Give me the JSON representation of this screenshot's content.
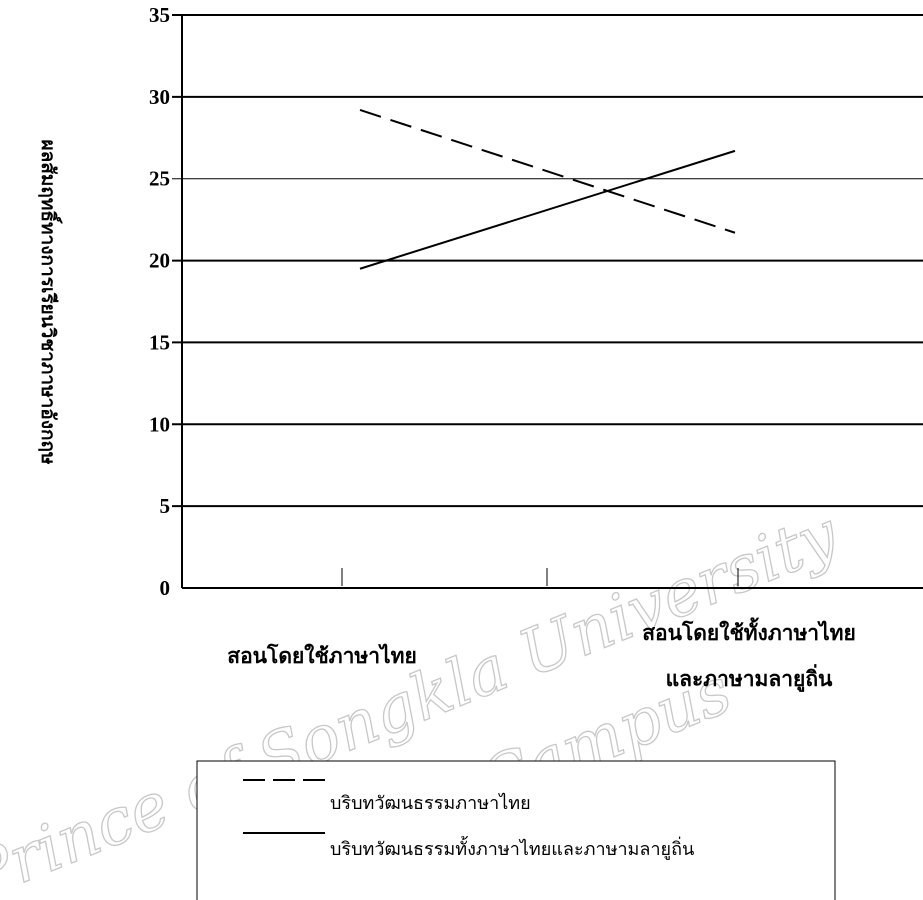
{
  "chart_data": {
    "type": "line",
    "title": "",
    "xlabel": "",
    "ylabel": "ผลสัมฤทธิ์ทางการเรียนวิชาภาษาอังกฤษ",
    "ylim": [
      0,
      35
    ],
    "yticks": [
      "0",
      "5",
      "10",
      "15",
      "20",
      "25",
      "30",
      "35"
    ],
    "categories": [
      [
        "สอนโดยใช้ภาษาไทย"
      ],
      [
        "สอนโดยใช้ทั้งภาษาไทย",
        "และภาษามลายูถิ่น"
      ]
    ],
    "series": [
      {
        "name": "บริบทวัฒนธรรมภาษาไทย",
        "style": "dashed",
        "values": [
          29.2,
          21.7
        ]
      },
      {
        "name": "บริบทวัฒนธรรมทั้งภาษาไทยและภาษามลายูถิ่น",
        "style": "solid",
        "values": [
          19.5,
          26.7
        ]
      }
    ],
    "grid": true,
    "legend_position": "bottom"
  },
  "watermark": {
    "text_line1": "Prince of Songkla University",
    "text_line2": "Pattani Campus"
  }
}
